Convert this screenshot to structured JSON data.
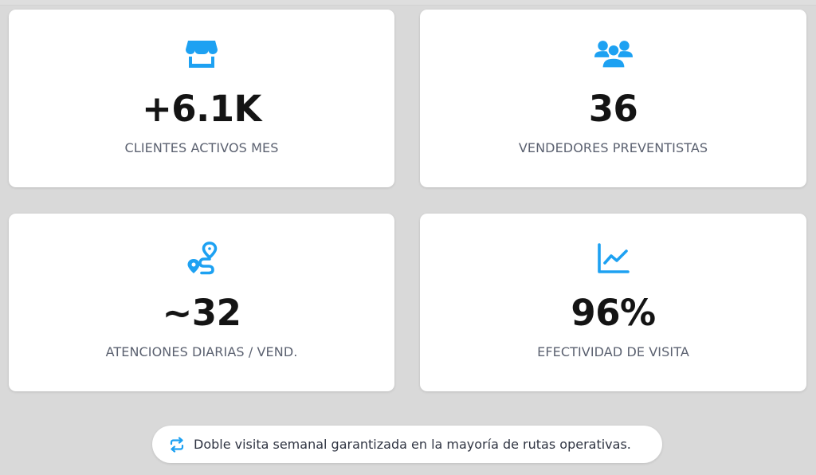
{
  "colors": {
    "accent": "#1da1f2",
    "value_text": "#141414",
    "label_text": "#5b6170",
    "background": "#d9d9d9"
  },
  "stats": [
    {
      "icon": "store-icon",
      "value": "+6.1K",
      "label": "CLIENTES ACTIVOS MES"
    },
    {
      "icon": "users-group-icon",
      "value": "36",
      "label": "VENDEDORES PREVENTISTAS"
    },
    {
      "icon": "route-icon",
      "value": "~32",
      "label": "ATENCIONES DIARIAS / VEND."
    },
    {
      "icon": "chart-line-icon",
      "value": "96%",
      "label": "EFECTIVIDAD DE VISITA"
    }
  ],
  "footer_note": {
    "icon": "repeat-icon",
    "text": "Doble visita semanal garantizada en la mayoría de rutas operativas."
  }
}
